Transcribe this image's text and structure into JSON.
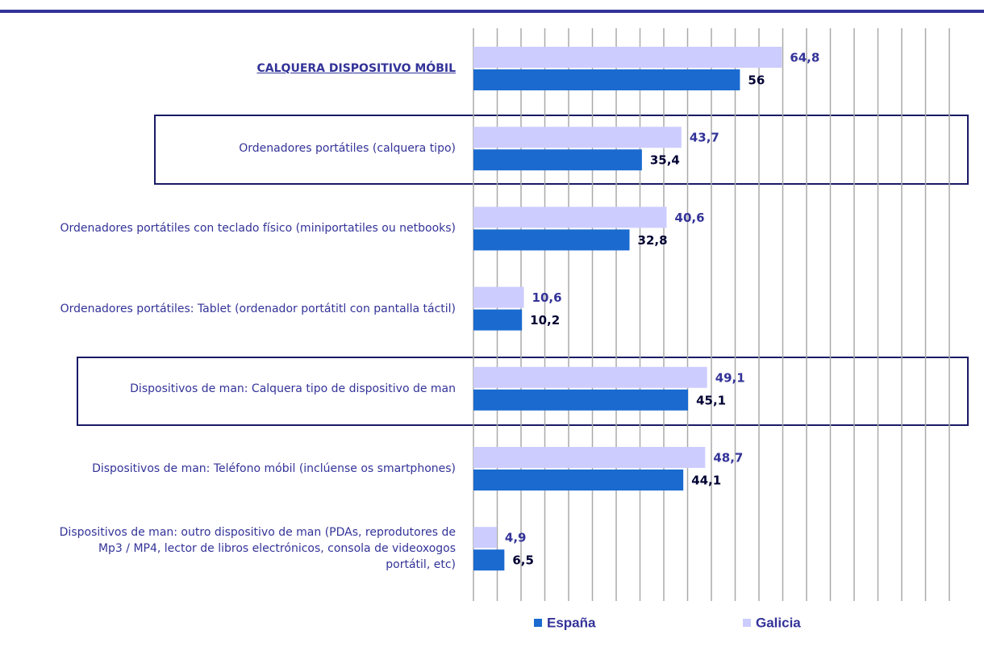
{
  "chart_data": {
    "type": "barh",
    "categories": [
      "CALQUERA DISPOSITIVO MÓBIL",
      "Ordenadores portátiles (calquera tipo)",
      "Ordenadores portátiles con teclado físico (miniportatiles ou netbooks)",
      "Ordenadores portátiles: Tablet (ordenador portátitl con pantalla táctil)",
      "Dispositivos de man: Calquera tipo de dispositivo de man",
      "Dispositivos de man: Teléfono móbil (inclúense os smartphones)",
      "Dispositivos de man: outro dispositivo de man (PDAs, reprodutores de Mp3 / MP4, lector de libros electrónicos, consola de videoxogos portátil, etc)"
    ],
    "series": [
      {
        "name": "España",
        "color": "#1a6ad0",
        "values": [
          56,
          35.4,
          32.8,
          10.2,
          45.1,
          44.1,
          6.5
        ],
        "value_labels": [
          "56",
          "35,4",
          "32,8",
          "10,2",
          "45,1",
          "44,1",
          "6,5"
        ]
      },
      {
        "name": "Galicia",
        "color": "#ccccff",
        "values": [
          64.8,
          43.7,
          40.6,
          10.6,
          49.1,
          48.7,
          4.9
        ],
        "value_labels": [
          "64,8",
          "43,7",
          "40,6",
          "10,6",
          "49,1",
          "48,7",
          "4,9"
        ]
      }
    ],
    "xlim": [
      0,
      100
    ],
    "xticks": [
      0,
      5,
      10,
      15,
      20,
      25,
      30,
      35,
      40,
      45,
      50,
      55,
      60,
      65,
      70,
      75,
      80,
      85,
      90,
      95,
      100
    ],
    "grid": true,
    "legend": "bottom"
  }
}
